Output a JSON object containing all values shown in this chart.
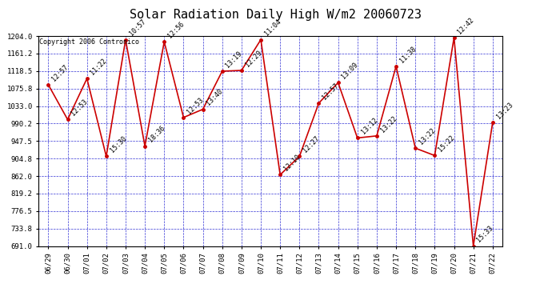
{
  "title": "Solar Radiation Daily High W/m2 20060723",
  "copyright": "Copyright 2006 Contronico",
  "background_color": "#ffffff",
  "plot_bg_color": "#ffffff",
  "grid_color": "#0000cc",
  "line_color": "#cc0000",
  "marker_color": "#cc0000",
  "text_color": "#000000",
  "x_labels": [
    "06/29",
    "06/30",
    "07/01",
    "07/02",
    "07/03",
    "07/04",
    "07/05",
    "07/06",
    "07/07",
    "07/08",
    "07/09",
    "07/10",
    "07/11",
    "07/12",
    "07/13",
    "07/14",
    "07/15",
    "07/16",
    "07/17",
    "07/18",
    "07/19",
    "07/20",
    "07/21",
    "07/22"
  ],
  "y_values": [
    1085,
    1000,
    1100,
    910,
    1195,
    935,
    1190,
    1005,
    1025,
    1118,
    1120,
    1195,
    865,
    910,
    1040,
    1090,
    955,
    960,
    1130,
    930,
    912,
    1200,
    691,
    993
  ],
  "point_labels": [
    "12:57",
    "12:53",
    "11:22",
    "15:30",
    "10:57",
    "18:36",
    "12:56",
    "12:53",
    "13:40",
    "13:19",
    "12:29",
    "11:04",
    "12:10",
    "12:27",
    "12:57",
    "13:09",
    "13:12",
    "13:22",
    "11:38",
    "13:22",
    "15:22",
    "12:42",
    "15:33",
    "13:23"
  ],
  "ylim_min": 691.0,
  "ylim_max": 1204.0,
  "yticks": [
    691.0,
    733.8,
    776.5,
    819.2,
    862.0,
    904.8,
    947.5,
    990.2,
    1033.0,
    1075.8,
    1118.5,
    1161.2,
    1204.0
  ],
  "title_fontsize": 11,
  "label_fontsize": 6,
  "tick_fontsize": 6.5,
  "copyright_fontsize": 6
}
